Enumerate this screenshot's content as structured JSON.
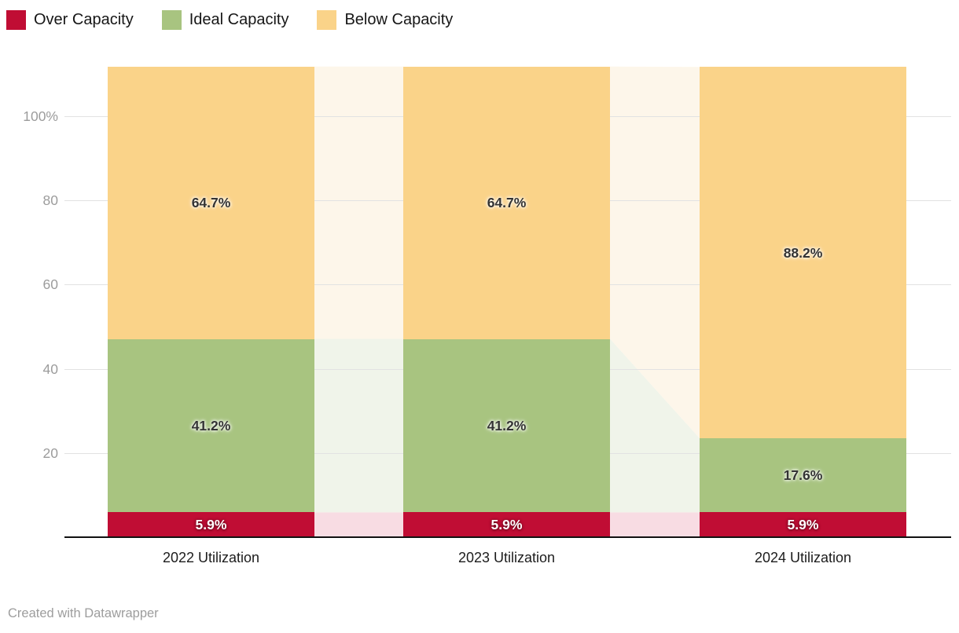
{
  "legend": {
    "items": [
      {
        "label": "Over Capacity",
        "color": "#c00d34"
      },
      {
        "label": "Ideal Capacity",
        "color": "#a8c480"
      },
      {
        "label": "Below Capacity",
        "color": "#fad389"
      }
    ]
  },
  "chart_data": {
    "type": "bar",
    "stacked": true,
    "categories": [
      "2022 Utilization",
      "2023 Utilization",
      "2024 Utilization"
    ],
    "series": [
      {
        "name": "Over Capacity",
        "values": [
          5.9,
          5.9,
          5.9
        ],
        "labels": [
          "5.9%",
          "5.9%",
          "5.9%"
        ],
        "color": "#c00d34",
        "connector_color": "#f8dce3",
        "label_style": "inverse"
      },
      {
        "name": "Ideal Capacity",
        "values": [
          41.2,
          41.2,
          17.6
        ],
        "labels": [
          "41.2%",
          "41.2%",
          "17.6%"
        ],
        "color": "#a8c480",
        "connector_color": "#f0f4ea",
        "label_style": "dark"
      },
      {
        "name": "Below Capacity",
        "values": [
          64.7,
          64.7,
          88.2
        ],
        "labels": [
          "64.7%",
          "64.7%",
          "88.2%"
        ],
        "color": "#fad389",
        "connector_color": "#fdf6ea",
        "label_style": "dark"
      }
    ],
    "y_ticks": [
      {
        "value": 20,
        "label": "20"
      },
      {
        "value": 40,
        "label": "40"
      },
      {
        "value": 60,
        "label": "60"
      },
      {
        "value": 80,
        "label": "80"
      },
      {
        "value": 100,
        "label": "100%"
      }
    ],
    "ylim": [
      0,
      112
    ],
    "grid": true,
    "legend_position": "top-left",
    "axis_color": "#111111",
    "gridline_color": "#e2e2e2",
    "tick_label_color": "#9c9c9c"
  },
  "footer": {
    "credit": "Created with Datawrapper"
  }
}
